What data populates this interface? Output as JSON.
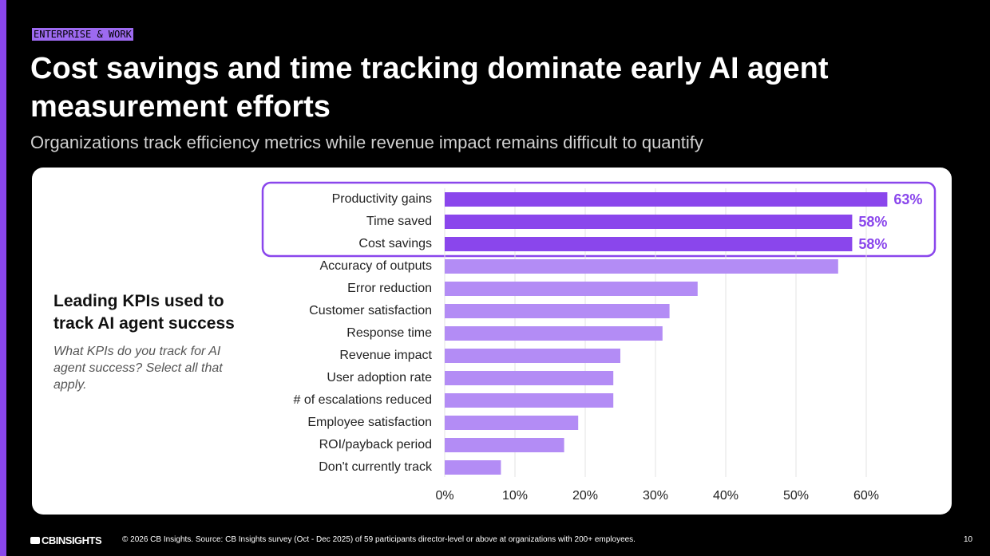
{
  "header": {
    "tag": "ENTERPRISE & WORK",
    "title": "Cost savings and time tracking dominate early AI agent measurement efforts",
    "subtitle": "Organizations track efficiency metrics while revenue impact remains difficult to quantify"
  },
  "chart_data": {
    "type": "bar",
    "orientation": "horizontal",
    "title": "Leading KPIs used to track AI agent success",
    "subtitle": "What KPIs do you track for AI agent success? Select all that apply.",
    "categories": [
      "Productivity gains",
      "Time saved",
      "Cost savings",
      "Accuracy of outputs",
      "Error reduction",
      "Customer satisfaction",
      "Response time",
      "Revenue impact",
      "User adoption rate",
      "# of escalations reduced",
      "Employee satisfaction",
      "ROI/payback period",
      "Don't currently track"
    ],
    "values": [
      63,
      58,
      58,
      56,
      36,
      32,
      31,
      25,
      24,
      24,
      19,
      17,
      8
    ],
    "value_labels": [
      "63%",
      "58%",
      "58%",
      null,
      null,
      null,
      null,
      null,
      null,
      null,
      null,
      null,
      null
    ],
    "colors": [
      "#8a46ec",
      "#8a46ec",
      "#8a46ec",
      "#b38cf5",
      "#b38cf5",
      "#b38cf5",
      "#b38cf5",
      "#b38cf5",
      "#b38cf5",
      "#b38cf5",
      "#b38cf5",
      "#b38cf5",
      "#b38cf5"
    ],
    "xlim": [
      0,
      60
    ],
    "xticks": [
      {
        "value": 0,
        "label": "0%"
      },
      {
        "value": 10,
        "label": "10%"
      },
      {
        "value": 20,
        "label": "20%"
      },
      {
        "value": 30,
        "label": "30%"
      },
      {
        "value": 40,
        "label": "40%"
      },
      {
        "value": 50,
        "label": "50%"
      },
      {
        "value": 60,
        "label": "60%"
      }
    ],
    "grid": true
  },
  "footer": {
    "logo": "CBINSIGHTS",
    "source": "© 2026 CB Insights. Source: CB Insights survey (Oct - Dec 2025) of 59 participants director-level or above at organizations with 200+ employees.",
    "page": "10"
  }
}
